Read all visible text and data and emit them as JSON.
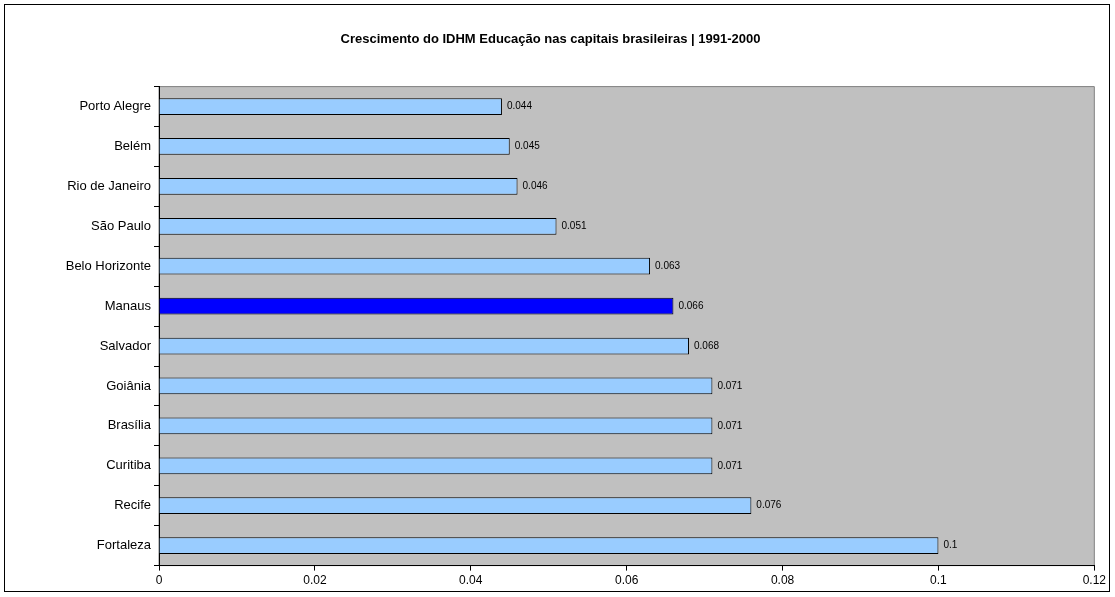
{
  "chart_data": {
    "type": "bar",
    "orientation": "horizontal",
    "title": "Crescimento do IDHM Educação nas capitais brasileiras | 1991-2000",
    "categories": [
      "Porto Alegre",
      "Belém",
      "Rio de Janeiro",
      "São Paulo",
      "Belo Horizonte",
      "Manaus",
      "Salvador",
      "Goiânia",
      "Brasília",
      "Curitiba",
      "Recife",
      "Fortaleza"
    ],
    "values": [
      0.044,
      0.045,
      0.046,
      0.051,
      0.063,
      0.066,
      0.068,
      0.071,
      0.071,
      0.071,
      0.076,
      0.1
    ],
    "colors": [
      "#99ccff",
      "#99ccff",
      "#99ccff",
      "#99ccff",
      "#99ccff",
      "#0000ff",
      "#99ccff",
      "#99ccff",
      "#99ccff",
      "#99ccff",
      "#99ccff",
      "#99ccff"
    ],
    "xlim": [
      0,
      0.12
    ],
    "xticks": [
      0,
      0.02,
      0.04,
      0.06,
      0.08,
      0.1,
      0.12
    ],
    "data_labels": true,
    "grid": false,
    "legend": false
  }
}
